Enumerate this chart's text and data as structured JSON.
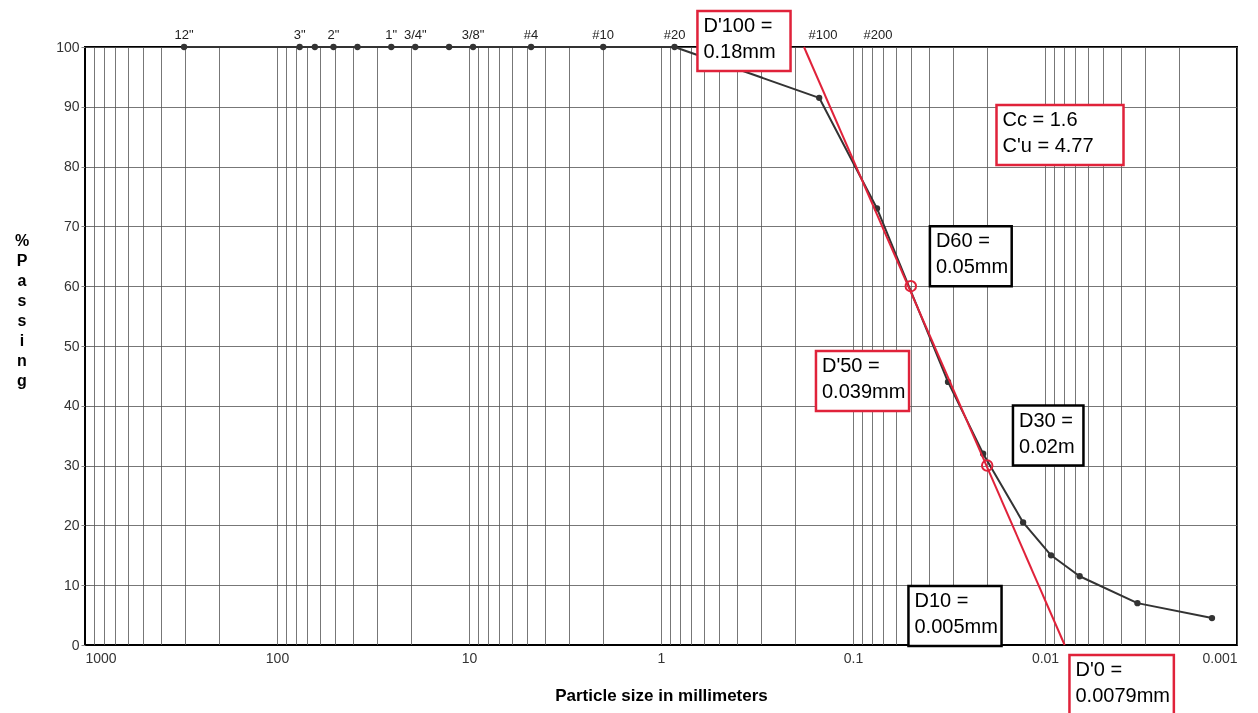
{
  "chart_data": {
    "type": "line",
    "xlabel": "Particle size in millimeters",
    "ylabel": "% Passing",
    "xlim": [
      1000,
      0.001
    ],
    "xticks": [
      1000,
      {
        "value": 900,
        "label": null
      },
      {
        "value": 800,
        "label": null
      },
      {
        "value": 700,
        "label": null
      },
      {
        "value": 600,
        "label": null
      },
      {
        "value": 500,
        "label": null
      },
      {
        "value": 400,
        "label": null
      },
      {
        "value": 300,
        "label": null
      },
      {
        "value": 200,
        "label": null
      },
      100,
      {
        "value": 90,
        "label": null
      },
      {
        "value": 80,
        "label": null
      },
      {
        "value": 70,
        "label": null
      },
      {
        "value": 60,
        "label": null
      },
      {
        "value": 50,
        "label": null
      },
      {
        "value": 40,
        "label": null
      },
      {
        "value": 30,
        "label": null
      },
      {
        "value": 20,
        "label": null
      },
      10,
      {
        "value": 9,
        "label": null
      },
      {
        "value": 8,
        "label": null
      },
      {
        "value": 7,
        "label": null
      },
      {
        "value": 6,
        "label": null
      },
      {
        "value": 5,
        "label": null
      },
      {
        "value": 4,
        "label": null
      },
      {
        "value": 3,
        "label": null
      },
      {
        "value": 2,
        "label": null
      },
      1,
      {
        "value": 0.9,
        "label": null
      },
      {
        "value": 0.8,
        "label": null
      },
      {
        "value": 0.7,
        "label": null
      },
      {
        "value": 0.6,
        "label": null
      },
      {
        "value": 0.5,
        "label": null
      },
      {
        "value": 0.4,
        "label": null
      },
      {
        "value": 0.3,
        "label": null
      },
      {
        "value": 0.2,
        "label": null
      },
      0.1,
      {
        "value": 0.09,
        "label": null
      },
      {
        "value": 0.08,
        "label": null
      },
      {
        "value": 0.07,
        "label": null
      },
      {
        "value": 0.06,
        "label": null
      },
      {
        "value": 0.05,
        "label": null
      },
      {
        "value": 0.04,
        "label": null
      },
      {
        "value": 0.03,
        "label": null
      },
      {
        "value": 0.02,
        "label": null
      },
      0.01,
      {
        "value": 0.009,
        "label": null
      },
      {
        "value": 0.008,
        "label": null
      },
      {
        "value": 0.007,
        "label": null
      },
      {
        "value": 0.006,
        "label": null
      },
      {
        "value": 0.005,
        "label": null
      },
      {
        "value": 0.004,
        "label": null
      },
      {
        "value": 0.003,
        "label": null
      },
      {
        "value": 0.002,
        "label": null
      },
      0.001
    ],
    "log": "x",
    "ylim": [
      0,
      100
    ],
    "yticks": [
      0,
      10,
      20,
      30,
      40,
      50,
      60,
      70,
      80,
      90,
      100
    ],
    "grid": true,
    "marker": "circle",
    "line_style": "solid",
    "series": [
      {
        "color": "#333333",
        "x": [
          304.8,
          76.2,
          63.5,
          50.8,
          38.1,
          25.4,
          19.05,
          12.7,
          9.525,
          4.75,
          2.0,
          0.85,
          0.15,
          0.075,
          0.032,
          0.021,
          0.013,
          0.0093,
          0.0066,
          0.0033,
          0.00135
        ],
        "values": [
          100,
          100,
          100,
          100,
          100,
          100,
          100,
          100,
          100,
          100,
          100,
          100,
          91.5,
          73,
          44,
          32,
          20.5,
          15,
          11.5,
          7,
          4.5
        ]
      },
      {
        "type": "line",
        "color": "#e0223a",
        "marker": "none",
        "x": [
          0.18,
          0.0079
        ],
        "values": [
          100,
          0
        ]
      },
      {
        "type": "scatter",
        "color": "#e0223a",
        "x": [
          0.05,
          0.02
        ],
        "values": [
          60,
          30
        ]
      }
    ],
    "annotations": [
      {
        "text": "D'100 =\n0.18mm",
        "x": 0.18,
        "y": 100
      },
      "Cc = 1.6\nC'u = 4.77",
      {
        "text": "D60 =\n0.05mm",
        "x": 0.05,
        "y": 60
      },
      {
        "text": "D'50 =\n0.039mm",
        "x": 0.039,
        "y": 50
      },
      {
        "text": "D30 =\n0.02m",
        "x": 0.02,
        "y": 30
      },
      "D10 =\n0.005mm",
      {
        "text": "D'0 =\n0.0079mm",
        "x": 0.0079,
        "y": 0
      },
      {
        "text": "12\"",
        "x": 304.8,
        "y": 100
      },
      {
        "text": "3\"",
        "x": 76.2,
        "y": 100
      },
      {
        "text": "2\"",
        "x": 50.8,
        "y": 100
      },
      {
        "text": "1\"",
        "x": 25.4,
        "y": 100
      },
      {
        "text": "3/4\"",
        "x": 19.05,
        "y": 100
      },
      {
        "text": "3/8\"",
        "x": 9.525,
        "y": 100
      },
      {
        "text": "#4",
        "x": 4.75,
        "y": 100
      },
      {
        "text": "#10",
        "x": 2.0,
        "y": 100
      },
      {
        "text": "#20",
        "x": 0.85,
        "y": 100
      },
      "#100",
      "#200"
    ]
  }
}
